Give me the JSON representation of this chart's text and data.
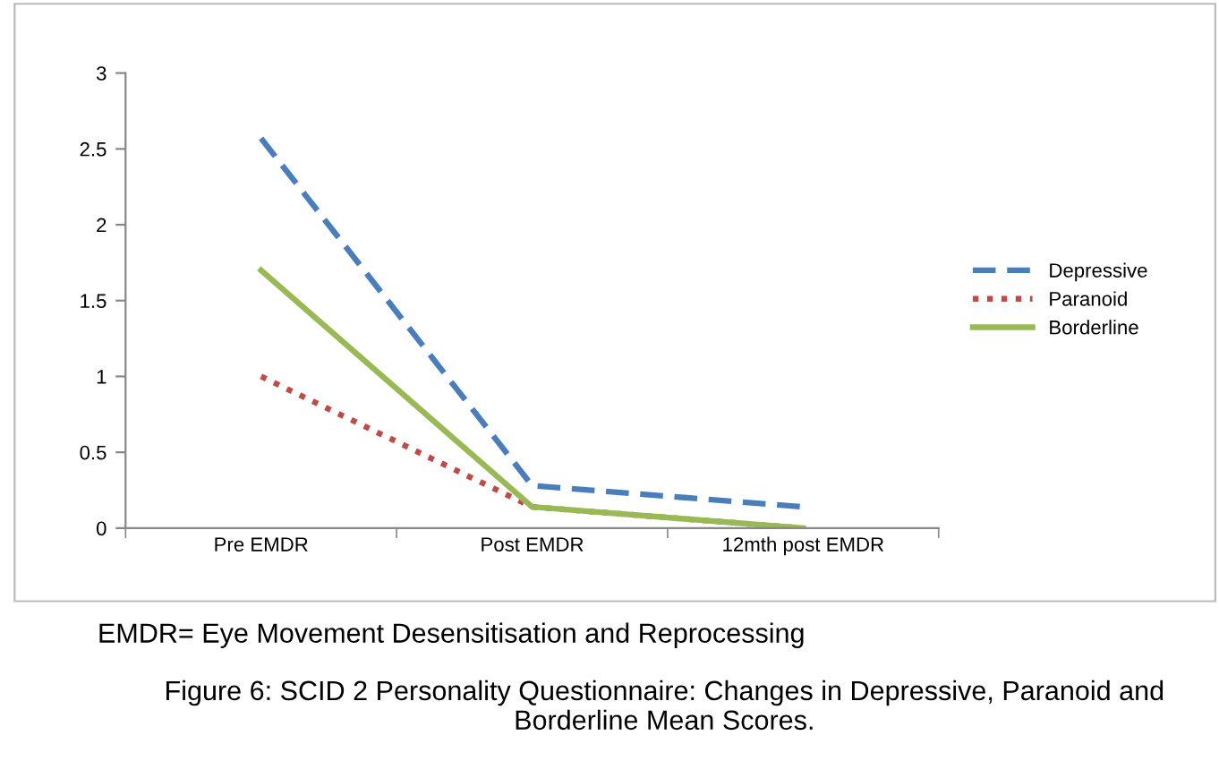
{
  "chart_data": {
    "type": "line",
    "title": "Figure 6: SCID 2 Personality Questionnaire: Changes in Depressive, Paranoid and Borderline Mean Scores.",
    "annotations": [
      "EMDR= Eye Movement Desensitisation and Reprocessing"
    ],
    "categories": [
      "Pre EMDR",
      "Post EMDR",
      "12mth post EMDR"
    ],
    "series": [
      {
        "name": "Depressive",
        "color": "#4a7ebb",
        "line_style": "dashed",
        "values": [
          2.57,
          0.28,
          0.14
        ]
      },
      {
        "name": "Paranoid",
        "color": "#be4b48",
        "line_style": "dotted",
        "values": [
          1.0,
          0.14,
          0.0
        ]
      },
      {
        "name": "Borderline",
        "color": "#98b954",
        "line_style": "solid",
        "values": [
          1.7,
          0.14,
          0.0
        ]
      }
    ],
    "ylim": [
      0,
      3
    ],
    "yticks": [
      0,
      0.5,
      1,
      1.5,
      2,
      2.5,
      3
    ],
    "grid": false,
    "legend": "right",
    "marker": "none"
  }
}
